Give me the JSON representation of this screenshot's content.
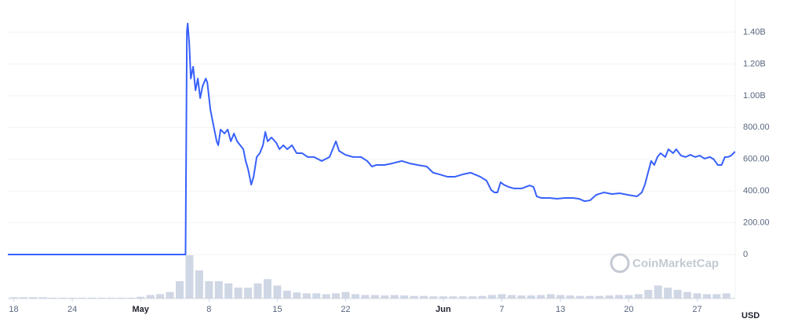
{
  "chart_data": {
    "type": "line",
    "x": [
      107.4,
      125.6,
      125.74,
      125.82,
      125.98,
      126.14,
      126.38,
      126.62,
      126.86,
      127.1,
      127.34,
      127.67,
      127.83,
      128.15,
      128.47,
      128.79,
      128.95,
      129.19,
      129.59,
      129.92,
      130.24,
      130.56,
      130.88,
      131.2,
      131.52,
      131.76,
      132.0,
      132.33,
      132.57,
      132.89,
      133.21,
      133.53,
      133.77,
      134.01,
      134.41,
      134.9,
      135.22,
      135.62,
      136.02,
      136.5,
      136.98,
      137.55,
      138.11,
      138.75,
      139.55,
      140.35,
      141.0,
      141.32,
      141.96,
      142.76,
      143.57,
      144.21,
      144.69,
      145.17,
      145.98,
      146.78,
      147.75,
      148.55,
      149.35,
      150.31,
      150.96,
      151.6,
      152.4,
      153.21,
      154.01,
      154.81,
      155.78,
      156.43,
      156.91,
      157.23,
      157.55,
      157.87,
      158.19,
      158.67,
      159.24,
      160.04,
      160.84,
      161.24,
      161.57,
      162.05,
      162.85,
      163.65,
      164.46,
      165.26,
      165.9,
      166.46,
      167.03,
      167.67,
      168.47,
      169.27,
      170.08,
      170.88,
      171.84,
      172.33,
      172.65,
      172.97,
      173.29,
      173.61,
      173.93,
      174.25,
      174.74,
      175.06,
      175.54,
      175.86,
      176.34,
      176.82,
      177.31,
      177.79,
      178.27,
      178.75,
      179.31,
      179.71,
      180.11,
      180.51,
      180.84,
      181.16,
      181.48,
      181.88
    ],
    "series": [
      {
        "color": "#3861fb",
        "values": [
          0,
          0,
          1405000000,
          1455000000,
          1331000000,
          1108000000,
          1183000000,
          1034000000,
          1108000000,
          985000000,
          1059000000,
          1108000000,
          1084000000,
          910000000,
          811000000,
          713000000,
          688000000,
          787000000,
          762000000,
          787000000,
          713000000,
          762000000,
          713000000,
          688000000,
          663000000,
          589000000,
          539000000,
          440000000,
          490000000,
          614000000,
          638000000,
          688000000,
          772000000,
          713000000,
          737000000,
          703000000,
          663000000,
          688000000,
          663000000,
          688000000,
          638000000,
          638000000,
          614000000,
          614000000,
          589000000,
          614000000,
          713000000,
          653000000,
          628000000,
          614000000,
          614000000,
          589000000,
          554000000,
          564000000,
          564000000,
          574000000,
          589000000,
          574000000,
          564000000,
          554000000,
          515000000,
          505000000,
          490000000,
          490000000,
          505000000,
          515000000,
          490000000,
          465000000,
          406000000,
          391000000,
          391000000,
          455000000,
          440000000,
          426000000,
          416000000,
          416000000,
          435000000,
          426000000,
          366000000,
          356000000,
          356000000,
          351000000,
          356000000,
          356000000,
          351000000,
          336000000,
          341000000,
          376000000,
          391000000,
          381000000,
          386000000,
          376000000,
          366000000,
          391000000,
          440000000,
          515000000,
          589000000,
          564000000,
          614000000,
          638000000,
          614000000,
          663000000,
          638000000,
          663000000,
          623000000,
          614000000,
          628000000,
          614000000,
          623000000,
          604000000,
          614000000,
          599000000,
          564000000,
          564000000,
          614000000,
          614000000,
          623000000,
          648000000
        ]
      }
    ],
    "volume": {
      "color": "#cfd6e4",
      "x": [
        108,
        109,
        110,
        111,
        112,
        113,
        114,
        115,
        116,
        117,
        118,
        119,
        120,
        121,
        122,
        123,
        124,
        125,
        126,
        127,
        128,
        129,
        130,
        131,
        132,
        133,
        134,
        135,
        136,
        137,
        138,
        139,
        140,
        141,
        142,
        143,
        144,
        145,
        146,
        147,
        148,
        149,
        150,
        151,
        152,
        153,
        154,
        155,
        156,
        157,
        158,
        159,
        160,
        161,
        162,
        163,
        164,
        165,
        166,
        167,
        168,
        169,
        170,
        171,
        172,
        173,
        174,
        175,
        176,
        177,
        178,
        179,
        180,
        181
      ],
      "values": [
        3,
        3,
        3,
        3,
        2,
        2,
        2,
        2,
        2,
        2,
        2,
        2,
        2,
        4,
        8,
        10,
        15,
        40,
        100,
        65,
        40,
        40,
        35,
        25,
        25,
        35,
        45,
        30,
        18,
        14,
        12,
        12,
        10,
        12,
        15,
        10,
        8,
        8,
        7,
        8,
        7,
        6,
        6,
        5,
        5,
        5,
        5,
        5,
        6,
        8,
        10,
        8,
        7,
        7,
        8,
        10,
        8,
        7,
        6,
        6,
        6,
        7,
        8,
        8,
        10,
        20,
        30,
        25,
        20,
        15,
        12,
        10,
        10,
        12
      ],
      "vlim": [
        0,
        100
      ]
    },
    "xlim": [
      107.4,
      181.9
    ],
    "ylim": [
      -277000000,
      1578000000
    ],
    "xticks": [
      {
        "value": 108,
        "label": "18"
      },
      {
        "value": 114,
        "label": "24"
      },
      {
        "value": 121,
        "label": "May"
      },
      {
        "value": 128,
        "label": "8"
      },
      {
        "value": 135,
        "label": "15"
      },
      {
        "value": 142,
        "label": "22"
      },
      {
        "value": 152,
        "label": "Jun"
      },
      {
        "value": 158,
        "label": "7"
      },
      {
        "value": 164,
        "label": "13"
      },
      {
        "value": 171,
        "label": "20"
      },
      {
        "value": 178,
        "label": "27"
      }
    ],
    "yticks": [
      0,
      {
        "value": 200000000,
        "label": "200.00"
      },
      {
        "value": 400000000,
        "label": "400.00"
      },
      {
        "value": 600000000,
        "label": "600.00"
      },
      {
        "value": 800000000,
        "label": "800.00"
      },
      {
        "value": 1000000000,
        "label": "1.00B"
      },
      {
        "value": 1200000000,
        "label": "1.20B"
      },
      {
        "value": 1400000000,
        "label": "1.40B"
      }
    ],
    "grid": true,
    "currency": "USD",
    "watermark": "CoinMarketCap"
  }
}
